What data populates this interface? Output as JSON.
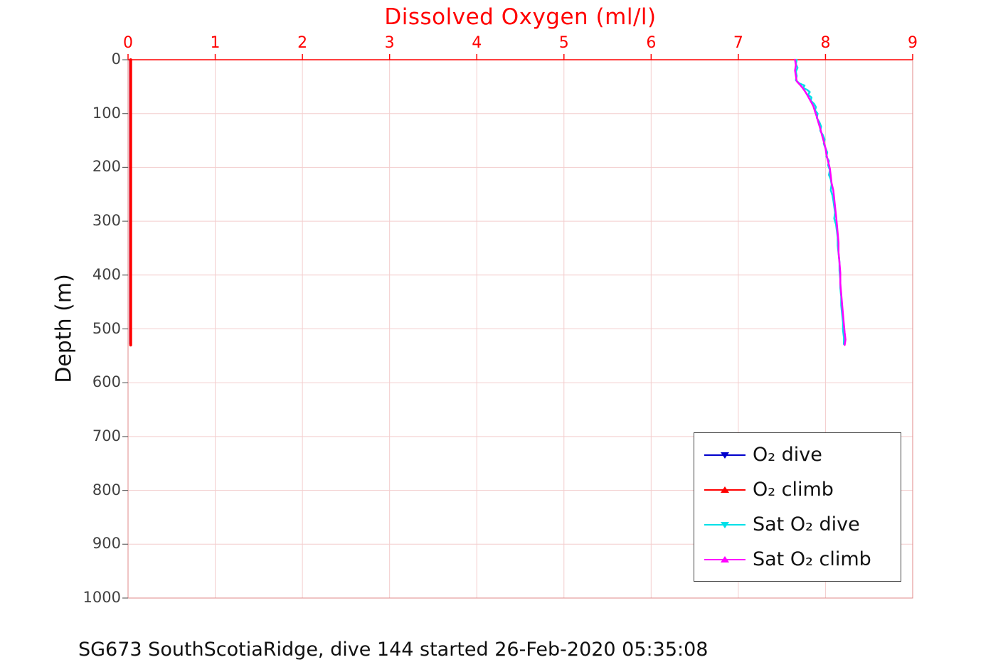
{
  "figure": {
    "caption": "SG673 SouthScotiaRidge, dive 144 started 26-Feb-2020 05:35:08"
  },
  "chart_data": {
    "type": "line",
    "title": "Dissolved Oxygen (ml/l)",
    "title_color": "#ff0000",
    "xlabel": "Dissolved Oxygen (ml/l)",
    "ylabel": "Depth (m)",
    "x_axis": {
      "min": 0,
      "max": 9,
      "position": "top",
      "color": "#ff0000",
      "ticks": [
        0,
        1,
        2,
        3,
        4,
        5,
        6,
        7,
        8,
        9
      ]
    },
    "y_axis": {
      "min": 0,
      "max": 1000,
      "reversed": true,
      "color": "#404040",
      "ticks": [
        0,
        100,
        200,
        300,
        400,
        500,
        600,
        700,
        800,
        900,
        1000
      ]
    },
    "grid": true,
    "grid_color": "#f3cdcd",
    "box_color": "#e08989",
    "legend_position": "bottom-right",
    "series": [
      {
        "name": "O₂ dive",
        "color": "#0000cc",
        "marker": "triangle-down",
        "line_width": 2,
        "points": [
          [
            0.02,
            0
          ],
          [
            0.02,
            528
          ]
        ]
      },
      {
        "name": "O₂ climb",
        "color": "#ff0000",
        "marker": "triangle-up",
        "line_width": 4,
        "points": [
          [
            0.03,
            0
          ],
          [
            0.03,
            530
          ]
        ]
      },
      {
        "name": "Sat O₂ dive",
        "color": "#00e0e8",
        "marker": "triangle-down",
        "line_width": 2.5,
        "points": [
          [
            7.67,
            0
          ],
          [
            7.66,
            8
          ],
          [
            7.68,
            15
          ],
          [
            7.66,
            22
          ],
          [
            7.67,
            30
          ],
          [
            7.66,
            38
          ],
          [
            7.7,
            44
          ],
          [
            7.76,
            48
          ],
          [
            7.74,
            52
          ],
          [
            7.79,
            56
          ],
          [
            7.82,
            60
          ],
          [
            7.8,
            65
          ],
          [
            7.84,
            70
          ],
          [
            7.83,
            76
          ],
          [
            7.87,
            82
          ],
          [
            7.89,
            88
          ],
          [
            7.88,
            94
          ],
          [
            7.91,
            100
          ],
          [
            7.9,
            108
          ],
          [
            7.93,
            116
          ],
          [
            7.95,
            124
          ],
          [
            7.94,
            132
          ],
          [
            7.97,
            140
          ],
          [
            7.99,
            148
          ],
          [
            7.98,
            156
          ],
          [
            8.0,
            164
          ],
          [
            8.02,
            172
          ],
          [
            8.01,
            180
          ],
          [
            8.04,
            188
          ],
          [
            8.03,
            196
          ],
          [
            8.05,
            205
          ],
          [
            8.04,
            214
          ],
          [
            8.06,
            222
          ],
          [
            8.07,
            232
          ],
          [
            8.06,
            242
          ],
          [
            8.08,
            252
          ],
          [
            8.09,
            262
          ],
          [
            8.1,
            273
          ],
          [
            8.11,
            284
          ],
          [
            8.1,
            295
          ],
          [
            8.12,
            306
          ],
          [
            8.13,
            318
          ],
          [
            8.14,
            330
          ],
          [
            8.14,
            345
          ],
          [
            8.15,
            360
          ],
          [
            8.16,
            376
          ],
          [
            8.16,
            392
          ],
          [
            8.17,
            408
          ],
          [
            8.17,
            424
          ],
          [
            8.18,
            440
          ],
          [
            8.18,
            456
          ],
          [
            8.19,
            472
          ],
          [
            8.2,
            488
          ],
          [
            8.2,
            502
          ],
          [
            8.21,
            515
          ],
          [
            8.21,
            528
          ]
        ]
      },
      {
        "name": "Sat O₂ climb",
        "color": "#ff00ff",
        "marker": "triangle-up",
        "line_width": 2.5,
        "points": [
          [
            7.65,
            0
          ],
          [
            7.66,
            10
          ],
          [
            7.65,
            20
          ],
          [
            7.66,
            30
          ],
          [
            7.67,
            40
          ],
          [
            7.71,
            47
          ],
          [
            7.74,
            53
          ],
          [
            7.77,
            60
          ],
          [
            7.8,
            68
          ],
          [
            7.83,
            77
          ],
          [
            7.86,
            86
          ],
          [
            7.88,
            96
          ],
          [
            7.9,
            106
          ],
          [
            7.92,
            117
          ],
          [
            7.94,
            128
          ],
          [
            7.96,
            140
          ],
          [
            7.98,
            152
          ],
          [
            8.0,
            164
          ],
          [
            8.01,
            176
          ],
          [
            8.03,
            189
          ],
          [
            8.05,
            202
          ],
          [
            8.06,
            215
          ],
          [
            8.07,
            229
          ],
          [
            8.09,
            243
          ],
          [
            8.1,
            258
          ],
          [
            8.11,
            273
          ],
          [
            8.12,
            289
          ],
          [
            8.13,
            305
          ],
          [
            8.14,
            322
          ],
          [
            8.15,
            340
          ],
          [
            8.15,
            358
          ],
          [
            8.16,
            377
          ],
          [
            8.17,
            396
          ],
          [
            8.17,
            415
          ],
          [
            8.18,
            434
          ],
          [
            8.19,
            453
          ],
          [
            8.2,
            472
          ],
          [
            8.21,
            490
          ],
          [
            8.22,
            507
          ],
          [
            8.23,
            520
          ],
          [
            8.22,
            530
          ]
        ]
      }
    ]
  }
}
